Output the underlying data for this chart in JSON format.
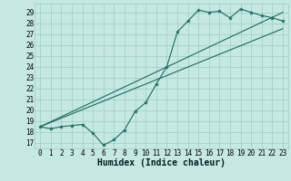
{
  "title": "",
  "xlabel": "Humidex (Indice chaleur)",
  "ylabel": "",
  "bg_color": "#c5e8e2",
  "grid_color": "#9eccc5",
  "line_color": "#1a6b5e",
  "xlim": [
    -0.5,
    23.5
  ],
  "ylim": [
    16.5,
    29.8
  ],
  "xticks": [
    0,
    1,
    2,
    3,
    4,
    5,
    6,
    7,
    8,
    9,
    10,
    11,
    12,
    13,
    14,
    15,
    16,
    17,
    18,
    19,
    20,
    21,
    22,
    23
  ],
  "yticks": [
    17,
    18,
    19,
    20,
    21,
    22,
    23,
    24,
    25,
    26,
    27,
    28,
    29
  ],
  "data_x": [
    0,
    1,
    2,
    3,
    4,
    5,
    6,
    7,
    8,
    9,
    10,
    11,
    12,
    13,
    14,
    15,
    16,
    17,
    18,
    19,
    20,
    21,
    22,
    23
  ],
  "data_y": [
    18.5,
    18.3,
    18.5,
    18.6,
    18.7,
    17.9,
    16.8,
    17.3,
    18.2,
    19.9,
    20.7,
    22.4,
    24.0,
    27.2,
    28.2,
    29.2,
    29.0,
    29.1,
    28.5,
    29.3,
    29.0,
    28.7,
    28.5,
    28.2
  ],
  "trend1_x": [
    0,
    23
  ],
  "trend1_y": [
    18.5,
    29.0
  ],
  "trend2_x": [
    0,
    23
  ],
  "trend2_y": [
    18.5,
    27.5
  ],
  "xlabel_fontsize": 7,
  "tick_fontsize": 5.5,
  "lw": 0.8
}
